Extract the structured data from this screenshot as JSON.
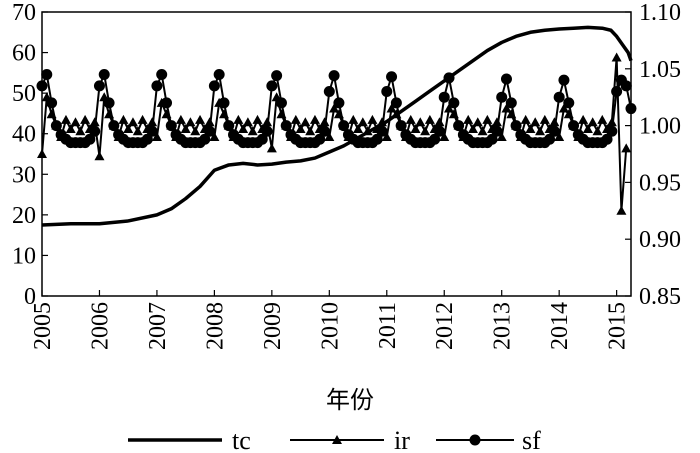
{
  "chart_data": {
    "type": "line",
    "xlabel": "年份",
    "x_tick_labels": [
      "2005",
      "2006",
      "2007",
      "2008",
      "2009",
      "2010",
      "2011",
      "2012",
      "2013",
      "2014",
      "2015"
    ],
    "xlim": [
      2005,
      2015.25
    ],
    "y_left": {
      "lim": [
        0,
        70
      ],
      "ticks": [
        "0",
        "10",
        "20",
        "30",
        "40",
        "50",
        "60",
        "70"
      ]
    },
    "y_right": {
      "lim": [
        0.85,
        1.1
      ],
      "ticks": [
        "0.85",
        "0.90",
        "0.95",
        "1.00",
        "1.05",
        "1.10"
      ]
    },
    "grid": false,
    "legend_position": "bottom",
    "series": [
      {
        "name": "tc",
        "axis": "left",
        "marker": "none",
        "x": [
          2005,
          2005.5,
          2006,
          2006.5,
          2007,
          2007.25,
          2007.5,
          2007.75,
          2008,
          2008.25,
          2008.5,
          2008.75,
          2009,
          2009.25,
          2009.5,
          2009.75,
          2010,
          2010.25,
          2010.5,
          2010.75,
          2011,
          2011.25,
          2011.5,
          2011.75,
          2012,
          2012.25,
          2012.5,
          2012.75,
          2013,
          2013.25,
          2013.5,
          2013.75,
          2014,
          2014.25,
          2014.5,
          2014.75,
          2014.9,
          2015,
          2015.1,
          2015.2,
          2015.25
        ],
        "values": [
          17.5,
          17.8,
          17.8,
          18.5,
          20,
          21.5,
          24,
          27,
          31,
          32.3,
          32.7,
          32.3,
          32.5,
          33,
          33.3,
          34,
          35.5,
          37,
          39,
          41,
          43,
          45.5,
          48,
          50.5,
          53,
          55.5,
          58,
          60.5,
          62.5,
          64,
          65,
          65.5,
          65.8,
          66,
          66.2,
          66,
          65.5,
          64,
          62,
          60,
          58
        ]
      },
      {
        "name": "ir",
        "axis": "right",
        "marker": "triangle",
        "x": [
          2005,
          2005.083,
          2005.167,
          2005.25,
          2005.333,
          2005.417,
          2005.5,
          2005.583,
          2005.667,
          2005.75,
          2005.833,
          2005.917,
          2006,
          2006.083,
          2006.167,
          2006.25,
          2006.333,
          2006.417,
          2006.5,
          2006.583,
          2006.667,
          2006.75,
          2006.833,
          2006.917,
          2007,
          2007.083,
          2007.167,
          2007.25,
          2007.333,
          2007.417,
          2007.5,
          2007.583,
          2007.667,
          2007.75,
          2007.833,
          2007.917,
          2008,
          2008.083,
          2008.167,
          2008.25,
          2008.333,
          2008.417,
          2008.5,
          2008.583,
          2008.667,
          2008.75,
          2008.833,
          2008.917,
          2009,
          2009.083,
          2009.167,
          2009.25,
          2009.333,
          2009.417,
          2009.5,
          2009.583,
          2009.667,
          2009.75,
          2009.833,
          2009.917,
          2010,
          2010.083,
          2010.167,
          2010.25,
          2010.333,
          2010.417,
          2010.5,
          2010.583,
          2010.667,
          2010.75,
          2010.833,
          2010.917,
          2011,
          2011.083,
          2011.167,
          2011.25,
          2011.333,
          2011.417,
          2011.5,
          2011.583,
          2011.667,
          2011.75,
          2011.833,
          2011.917,
          2012,
          2012.083,
          2012.167,
          2012.25,
          2012.333,
          2012.417,
          2012.5,
          2012.583,
          2012.667,
          2012.75,
          2012.833,
          2012.917,
          2013,
          2013.083,
          2013.167,
          2013.25,
          2013.333,
          2013.417,
          2013.5,
          2013.583,
          2013.667,
          2013.75,
          2013.833,
          2013.917,
          2014,
          2014.083,
          2014.167,
          2014.25,
          2014.333,
          2014.417,
          2014.5,
          2014.583,
          2014.667,
          2014.75,
          2014.833,
          2014.917,
          2015,
          2015.083,
          2015.167
        ],
        "values": [
          0.975,
          1.025,
          1.01,
          1.0,
          0.99,
          1.005,
          0.997,
          1.003,
          0.995,
          1.005,
          0.997,
          1.003,
          0.973,
          1.025,
          1.01,
          1.0,
          0.99,
          1.005,
          0.997,
          1.003,
          0.995,
          1.005,
          0.997,
          1.003,
          0.99,
          1.02,
          1.01,
          1.0,
          0.99,
          1.005,
          0.997,
          1.003,
          0.995,
          1.005,
          0.997,
          1.003,
          0.99,
          1.02,
          1.01,
          1.0,
          0.99,
          1.005,
          0.997,
          1.003,
          0.995,
          1.005,
          0.997,
          1.003,
          0.98,
          1.025,
          1.01,
          1.0,
          0.99,
          1.005,
          0.997,
          1.003,
          0.995,
          1.005,
          0.997,
          1.003,
          0.99,
          1.015,
          1.01,
          1.0,
          0.99,
          1.005,
          0.997,
          1.003,
          0.995,
          1.005,
          0.997,
          1.003,
          0.99,
          1.015,
          1.01,
          1.0,
          0.99,
          1.005,
          0.997,
          1.003,
          0.995,
          1.005,
          0.997,
          1.003,
          0.99,
          1.015,
          1.01,
          1.0,
          0.99,
          1.005,
          0.997,
          1.003,
          0.995,
          1.005,
          0.997,
          1.003,
          0.99,
          1.015,
          1.01,
          1.0,
          0.99,
          1.005,
          0.997,
          1.003,
          0.995,
          1.005,
          0.997,
          1.003,
          0.99,
          1.015,
          1.01,
          1.0,
          0.99,
          1.005,
          0.997,
          1.003,
          0.995,
          1.005,
          0.997,
          1.003,
          1.06,
          0.925,
          0.98
        ]
      },
      {
        "name": "sf",
        "axis": "right",
        "marker": "circle",
        "x": [
          2005,
          2005.083,
          2005.167,
          2005.25,
          2005.333,
          2005.417,
          2005.5,
          2005.583,
          2005.667,
          2005.75,
          2005.833,
          2005.917,
          2006,
          2006.083,
          2006.167,
          2006.25,
          2006.333,
          2006.417,
          2006.5,
          2006.583,
          2006.667,
          2006.75,
          2006.833,
          2006.917,
          2007,
          2007.083,
          2007.167,
          2007.25,
          2007.333,
          2007.417,
          2007.5,
          2007.583,
          2007.667,
          2007.75,
          2007.833,
          2007.917,
          2008,
          2008.083,
          2008.167,
          2008.25,
          2008.333,
          2008.417,
          2008.5,
          2008.583,
          2008.667,
          2008.75,
          2008.833,
          2008.917,
          2009,
          2009.083,
          2009.167,
          2009.25,
          2009.333,
          2009.417,
          2009.5,
          2009.583,
          2009.667,
          2009.75,
          2009.833,
          2009.917,
          2010,
          2010.083,
          2010.167,
          2010.25,
          2010.333,
          2010.417,
          2010.5,
          2010.583,
          2010.667,
          2010.75,
          2010.833,
          2010.917,
          2011,
          2011.083,
          2011.167,
          2011.25,
          2011.333,
          2011.417,
          2011.5,
          2011.583,
          2011.667,
          2011.75,
          2011.833,
          2011.917,
          2012,
          2012.083,
          2012.167,
          2012.25,
          2012.333,
          2012.417,
          2012.5,
          2012.583,
          2012.667,
          2012.75,
          2012.833,
          2012.917,
          2013,
          2013.083,
          2013.167,
          2013.25,
          2013.333,
          2013.417,
          2013.5,
          2013.583,
          2013.667,
          2013.75,
          2013.833,
          2013.917,
          2014,
          2014.083,
          2014.167,
          2014.25,
          2014.333,
          2014.417,
          2014.5,
          2014.583,
          2014.667,
          2014.75,
          2014.833,
          2014.917,
          2015,
          2015.083,
          2015.167,
          2015.25
        ],
        "values": [
          1.035,
          1.045,
          1.02,
          1.0,
          0.992,
          0.988,
          0.985,
          0.985,
          0.985,
          0.985,
          0.988,
          0.995,
          1.035,
          1.045,
          1.02,
          1.0,
          0.992,
          0.988,
          0.985,
          0.985,
          0.985,
          0.985,
          0.988,
          0.995,
          1.035,
          1.045,
          1.02,
          1.0,
          0.992,
          0.988,
          0.985,
          0.985,
          0.985,
          0.985,
          0.988,
          0.995,
          1.035,
          1.045,
          1.02,
          1.0,
          0.992,
          0.988,
          0.985,
          0.985,
          0.985,
          0.985,
          0.988,
          0.995,
          1.035,
          1.044,
          1.02,
          1.0,
          0.992,
          0.988,
          0.985,
          0.985,
          0.985,
          0.985,
          0.988,
          0.995,
          1.03,
          1.044,
          1.02,
          1.0,
          0.992,
          0.988,
          0.985,
          0.985,
          0.985,
          0.985,
          0.988,
          0.995,
          1.03,
          1.043,
          1.02,
          1.0,
          0.992,
          0.988,
          0.985,
          0.985,
          0.985,
          0.985,
          0.988,
          0.995,
          1.025,
          1.042,
          1.02,
          1.0,
          0.992,
          0.988,
          0.985,
          0.985,
          0.985,
          0.985,
          0.988,
          0.995,
          1.025,
          1.041,
          1.02,
          1.0,
          0.992,
          0.988,
          0.985,
          0.985,
          0.985,
          0.985,
          0.988,
          0.995,
          1.025,
          1.04,
          1.02,
          1.0,
          0.992,
          0.988,
          0.985,
          0.985,
          0.985,
          0.985,
          0.988,
          0.995,
          1.03,
          1.04,
          1.035,
          1.015
        ]
      }
    ]
  }
}
